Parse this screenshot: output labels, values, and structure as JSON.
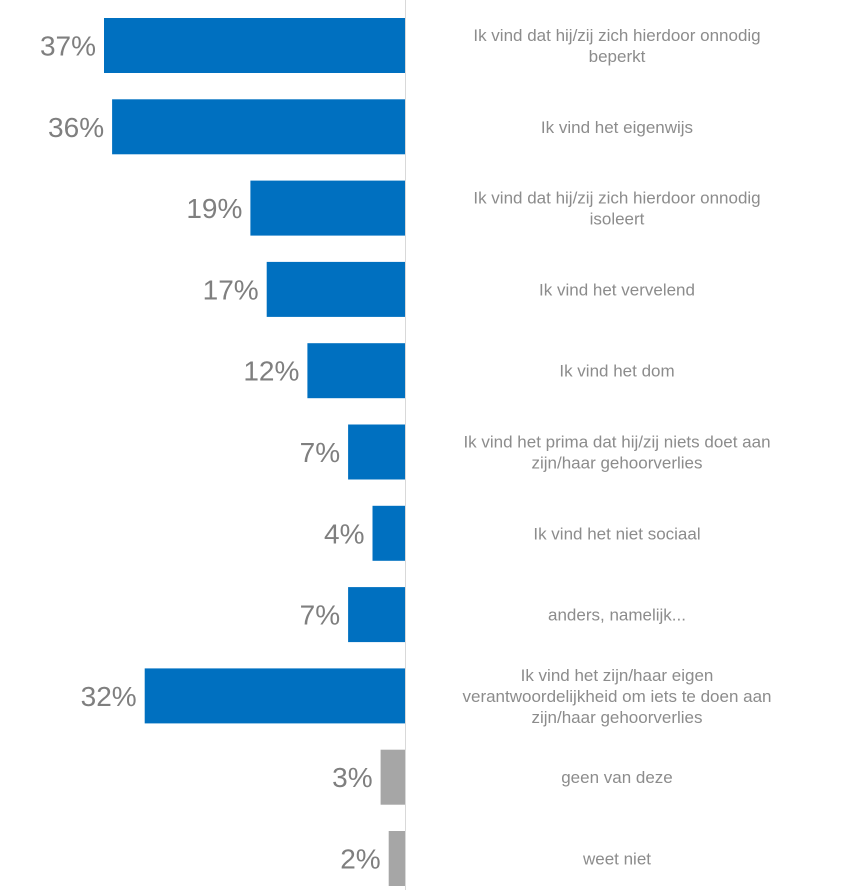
{
  "chart_data": {
    "type": "bar",
    "orientation": "horizontal",
    "categories": [
      "Ik vind dat hij/zij zich hierdoor onnodig beperkt",
      "Ik vind het eigenwijs",
      "Ik vind dat hij/zij zich hierdoor onnodig isoleert",
      "Ik vind het vervelend",
      "Ik vind het dom",
      "Ik vind het prima dat hij/zij niets doet aan zijn/haar gehoorverlies",
      "Ik vind het niet sociaal",
      "anders, namelijk...",
      "Ik vind het zijn/haar eigen verantwoordelijkheid om iets te doen aan zijn/haar gehoorverlies",
      "geen van deze",
      "weet niet"
    ],
    "category_lines": [
      [
        "Ik vind dat hij/zij zich hierdoor onnodig",
        "beperkt"
      ],
      [
        "Ik vind het eigenwijs"
      ],
      [
        "Ik vind dat hij/zij zich hierdoor onnodig",
        "isoleert"
      ],
      [
        "Ik vind het vervelend"
      ],
      [
        "Ik vind het dom"
      ],
      [
        "Ik vind het prima dat hij/zij niets doet aan",
        "zijn/haar gehoorverlies"
      ],
      [
        "Ik vind het niet sociaal"
      ],
      [
        "anders, namelijk..."
      ],
      [
        "Ik vind het zijn/haar eigen",
        "verantwoordelijkheid om iets te doen aan",
        "zijn/haar gehoorverlies"
      ],
      [
        "geen van deze"
      ],
      [
        "weet niet"
      ]
    ],
    "values": [
      37,
      36,
      19,
      17,
      12,
      7,
      4,
      7,
      32,
      3,
      2
    ],
    "value_labels": [
      "37%",
      "36%",
      "19%",
      "17%",
      "12%",
      "7%",
      "4%",
      "7%",
      "32%",
      "3%",
      "2%"
    ],
    "unit": "%",
    "xlim": [
      0,
      40
    ],
    "bar_colors": [
      "#0070c0",
      "#0070c0",
      "#0070c0",
      "#0070c0",
      "#0070c0",
      "#0070c0",
      "#0070c0",
      "#0070c0",
      "#0070c0",
      "#a6a6a6",
      "#a6a6a6"
    ],
    "axis_line_color": "#d9d9d9",
    "value_label_color": "#7f7f7f",
    "category_label_color": "#8c8c8c",
    "grid": false,
    "legend": "none"
  }
}
